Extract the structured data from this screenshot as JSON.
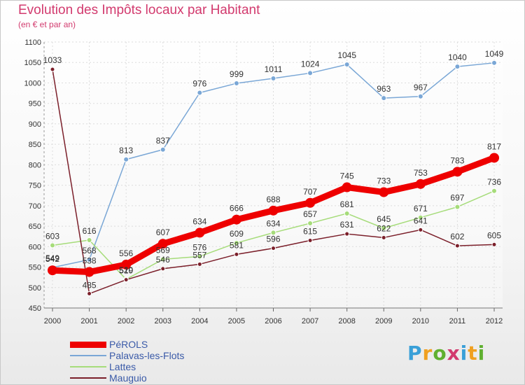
{
  "header": {
    "title": "Evolution des Impôts locaux par Habitant",
    "subtitle": "(en € et par an)"
  },
  "logo": {
    "text": "Proxiti",
    "colors": [
      "#3aa0d8",
      "#f0a020",
      "#60b030",
      "#d23a6e",
      "#3aa0d8",
      "#f0a020",
      "#60b030"
    ]
  },
  "chart_data": {
    "type": "line",
    "title": "Evolution des Impôts locaux par Habitant",
    "subtitle": "(en € et par an)",
    "xlabel": "",
    "ylabel": "",
    "ylim": [
      450,
      1100
    ],
    "yticks": [
      450,
      500,
      550,
      600,
      650,
      700,
      750,
      800,
      850,
      900,
      950,
      1000,
      1050,
      1100
    ],
    "grid": true,
    "legend_position": "bottom-left",
    "x": [
      "2000",
      "2001",
      "2002",
      "2003",
      "2004",
      "2005",
      "2006",
      "2007",
      "2008",
      "2009",
      "2010",
      "2011",
      "2012"
    ],
    "series": [
      {
        "name": "PéROLS",
        "color": "#ee0000",
        "values": [
          542,
          538,
          556,
          607,
          634,
          666,
          688,
          707,
          745,
          733,
          753,
          783,
          817
        ]
      },
      {
        "name": "Palavas-les-Flots",
        "color": "#7aa7d6",
        "values": [
          549,
          568,
          813,
          837,
          976,
          999,
          1011,
          1024,
          1045,
          963,
          967,
          1040,
          1049
        ]
      },
      {
        "name": "Lattes",
        "color": "#a6dc7a",
        "values": [
          603,
          616,
          520,
          569,
          576,
          609,
          634,
          657,
          681,
          645,
          671,
          697,
          736
        ]
      },
      {
        "name": "Mauguio",
        "color": "#7b1f2a",
        "values": [
          1033,
          485,
          519,
          546,
          557,
          581,
          596,
          615,
          631,
          622,
          641,
          602,
          605
        ]
      }
    ]
  }
}
